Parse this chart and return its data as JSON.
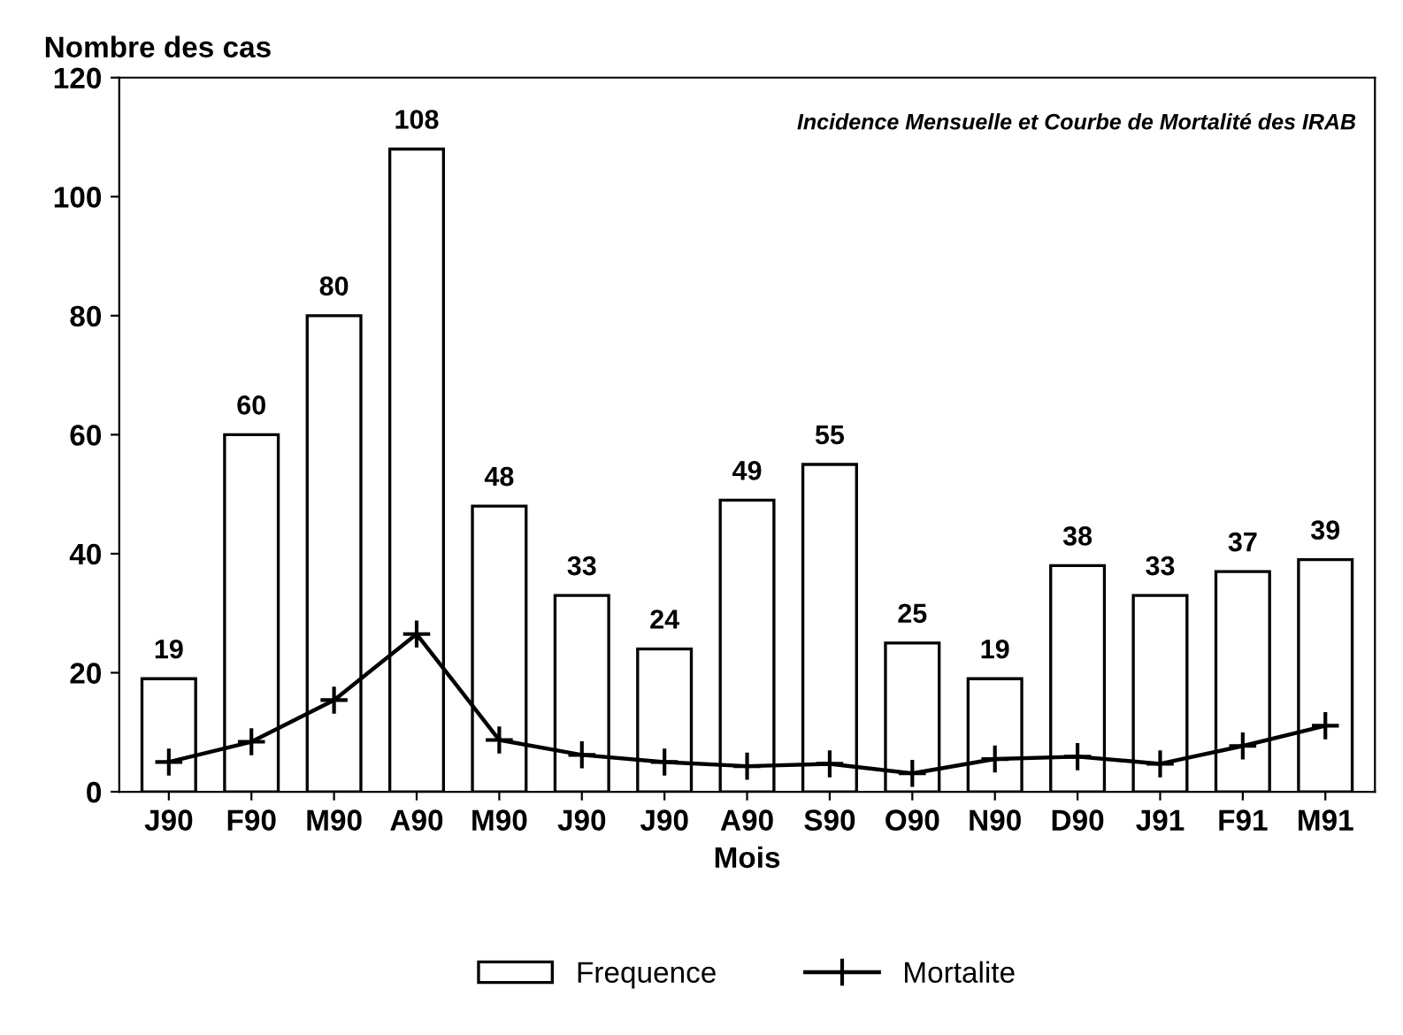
{
  "chart_data": {
    "type": "bar",
    "title": "Incidence Mensuelle et Courbe de Mortalité des IRAB",
    "ylabel": "Nombre des cas",
    "xlabel": "Mois",
    "categories": [
      "J90",
      "F90",
      "M90",
      "A90",
      "M90",
      "J90",
      "J90",
      "A90",
      "S90",
      "O90",
      "N90",
      "D90",
      "J91",
      "F91",
      "M91"
    ],
    "series": [
      {
        "name": "Frequence",
        "color": "#ffffff",
        "values": [
          19,
          60,
          80,
          108,
          48,
          33,
          24,
          49,
          55,
          25,
          19,
          38,
          33,
          37,
          39
        ],
        "data_labels": true
      },
      {
        "name": "Mortalite",
        "type": "line",
        "color": "#000000",
        "marker": "cross",
        "line_style": "solid",
        "values": [
          5,
          8.4,
          15.4,
          26.5,
          8.7,
          6.2,
          5,
          4.3,
          4.7,
          3.1,
          5.5,
          5.9,
          4.7,
          7.7,
          11.1
        ]
      }
    ],
    "ylim": [
      0,
      120
    ],
    "yticks": [
      0,
      20,
      40,
      60,
      80,
      100,
      120
    ],
    "grid": false,
    "legend": "bottom"
  }
}
